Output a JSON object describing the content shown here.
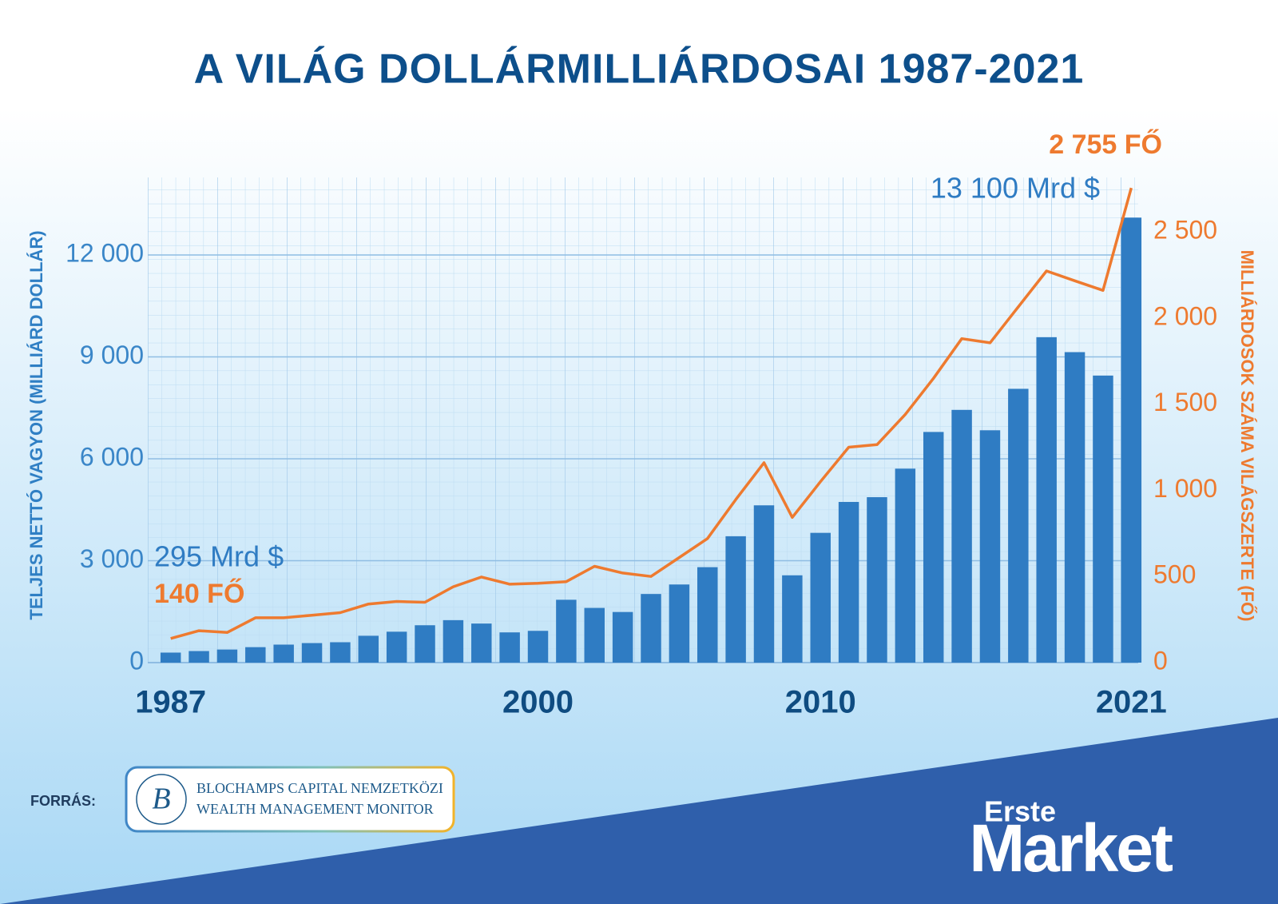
{
  "chart_data": {
    "type": "bar",
    "title": "A VILÁG DOLLÁRMILLIÁRDOSAI 1987-2021",
    "y_label": "TELJES NETTÓ VAGYON (MILLIÁRD DOLLÁR)",
    "y2_label": "MILLIÁRDOSOK SZÁMA VILÁGSZERTE (FŐ)",
    "categories": [
      "1987",
      null,
      null,
      null,
      null,
      null,
      null,
      null,
      null,
      null,
      null,
      null,
      null,
      "2000",
      null,
      null,
      null,
      null,
      null,
      null,
      null,
      null,
      null,
      "2010",
      null,
      null,
      null,
      null,
      null,
      null,
      null,
      null,
      null,
      null,
      "2021"
    ],
    "series": [
      {
        "type": "bar",
        "color": "#2f7cc3",
        "values": [
          295,
          340,
          385,
          455,
          530,
          575,
          600,
          790,
          910,
          1100,
          1250,
          1150,
          890,
          935,
          1850,
          1610,
          1490,
          2020,
          2300,
          2810,
          3720,
          4630,
          2570,
          3820,
          4730,
          4870,
          5710,
          6790,
          7440,
          6840,
          8060,
          9580,
          9140,
          8450,
          13100
        ],
        "value_labels": [
          "295 Mrd $",
          null,
          null,
          null,
          null,
          null,
          null,
          null,
          null,
          null,
          null,
          null,
          null,
          null,
          null,
          null,
          null,
          null,
          null,
          null,
          null,
          null,
          null,
          null,
          null,
          null,
          null,
          null,
          null,
          null,
          null,
          null,
          null,
          null,
          "13 100 Mrd $"
        ]
      },
      {
        "type": "line",
        "color": "#ee7a2f",
        "axis": "y2",
        "values": [
          140,
          185,
          175,
          260,
          260,
          275,
          290,
          340,
          355,
          350,
          440,
          497,
          455,
          460,
          470,
          559,
          520,
          500,
          610,
          720,
          946,
          1160,
          843,
          1050,
          1250,
          1265,
          1440,
          1650,
          1880,
          1856,
          2064,
          2273,
          2216,
          2160,
          2755
        ],
        "value_labels": [
          "140 FŐ",
          null,
          null,
          null,
          null,
          null,
          null,
          null,
          null,
          null,
          null,
          null,
          null,
          null,
          null,
          null,
          null,
          null,
          null,
          null,
          null,
          null,
          null,
          null,
          null,
          null,
          null,
          null,
          null,
          null,
          null,
          null,
          null,
          null,
          "2 755 FŐ"
        ]
      }
    ],
    "ylim": [
      0,
      14000
    ],
    "yticks": [
      0,
      {
        "value": 3000,
        "label": "3 000"
      },
      {
        "value": 6000,
        "label": "6 000"
      },
      {
        "value": 9000,
        "label": "9 000"
      },
      {
        "value": 12000,
        "label": "12 000"
      }
    ],
    "y2lim": [
      0,
      2760
    ],
    "y2ticks": [
      0,
      500,
      {
        "value": 1000,
        "label": "1 000"
      },
      {
        "value": 1500,
        "label": "1 500"
      },
      {
        "value": 2000,
        "label": "2 000"
      },
      {
        "value": 2500,
        "label": "2 500"
      }
    ],
    "grid": true
  },
  "source": {
    "label": "FORRÁS:",
    "logo_letter": "B",
    "lines": [
      "BLOCHAMPS CAPITAL NEMZETKÖZI",
      "WEALTH MANAGEMENT MONITOR"
    ]
  },
  "brand": {
    "top": "Erste",
    "bottom": "Market"
  }
}
